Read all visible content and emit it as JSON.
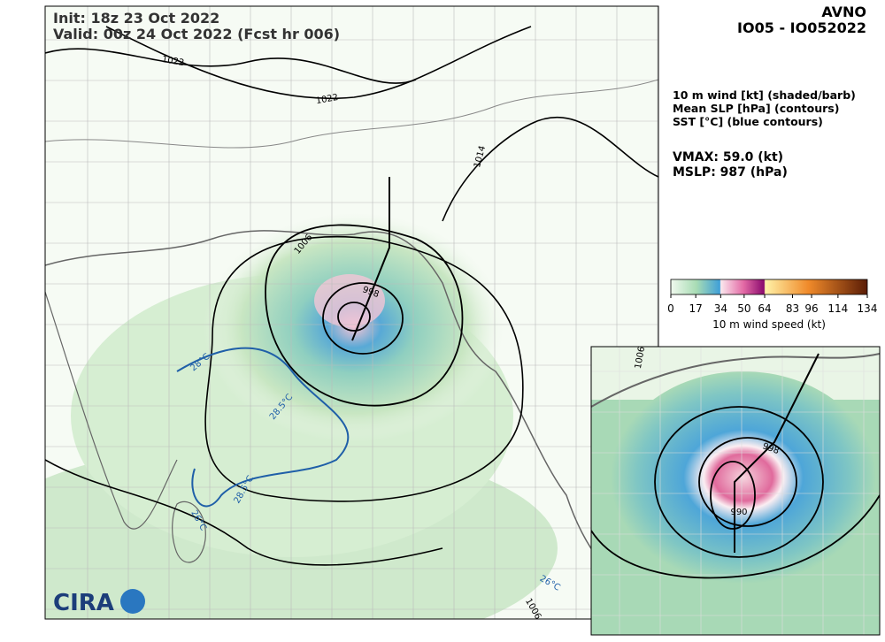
{
  "header": {
    "init": "Init:  18z 23 Oct 2022",
    "valid": "Valid: 00z 24 Oct 2022 (Fcst hr 006)"
  },
  "storm": {
    "model": "AVNO",
    "id": "IO05 - IO052022"
  },
  "legend": {
    "lines": [
      "10 m wind [kt] (shaded/barb)",
      "Mean SLP [hPa] (contours)",
      "SST [°C] (blue contours)"
    ]
  },
  "stats": {
    "vmax": "VMAX:  59.0 (kt)",
    "mslp": "MSLP:  987 (hPa)"
  },
  "colorbar": {
    "ticks": [
      0,
      17,
      34,
      50,
      64,
      83,
      96,
      114,
      134
    ],
    "label": "10 m wind speed (kt)"
  },
  "map": {
    "contour_labels": [
      "1022",
      "1022",
      "1014",
      "1006",
      "998",
      "28.5°C",
      "28°C",
      "28.5°C",
      "26°C",
      "26°C",
      "1006",
      "998",
      "990",
      "1006"
    ]
  },
  "logo": {
    "text": "CIRA"
  }
}
